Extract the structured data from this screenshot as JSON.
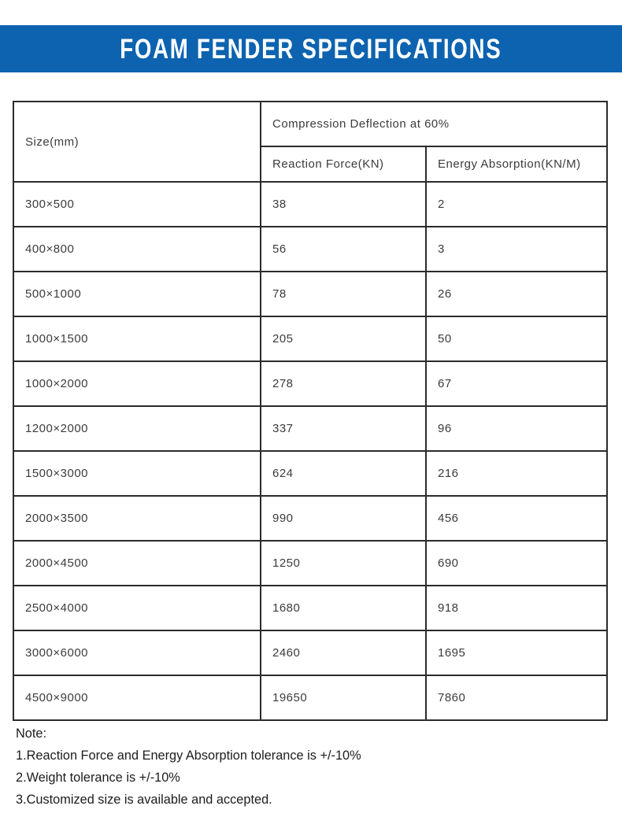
{
  "page": {
    "title": "FOAM FENDER SPECIFICATIONS"
  },
  "colors": {
    "banner_blue": "#0d63b0",
    "table_border": "#2b2b2b",
    "table_text": "#3c3c3c",
    "title_text": "#ffffff"
  },
  "table": {
    "headers": {
      "size": "Size(mm)",
      "group": "Compression Deflection at 60%",
      "reaction": "Reaction Force(KN)",
      "energy": "Energy Absorption(KN/M)"
    },
    "rows": [
      {
        "size": "300×500",
        "reaction": "38",
        "energy": "2"
      },
      {
        "size": "400×800",
        "reaction": "56",
        "energy": "3"
      },
      {
        "size": "500×1000",
        "reaction": "78",
        "energy": "26"
      },
      {
        "size": "1000×1500",
        "reaction": "205",
        "energy": "50"
      },
      {
        "size": "1000×2000",
        "reaction": "278",
        "energy": "67"
      },
      {
        "size": "1200×2000",
        "reaction": "337",
        "energy": "96"
      },
      {
        "size": "1500×3000",
        "reaction": "624",
        "energy": "216"
      },
      {
        "size": "2000×3500",
        "reaction": "990",
        "energy": "456"
      },
      {
        "size": "2000×4500",
        "reaction": "1250",
        "energy": "690"
      },
      {
        "size": "2500×4000",
        "reaction": "1680",
        "energy": "918"
      },
      {
        "size": "3000×6000",
        "reaction": "2460",
        "energy": "1695"
      },
      {
        "size": "4500×9000",
        "reaction": "19650",
        "energy": "7860"
      }
    ]
  },
  "notes": {
    "label": "Note:",
    "items": [
      "1.Reaction Force and Energy Absorption tolerance is +/-10%",
      "2.Weight tolerance is +/-10%",
      "3.Customized size is available and accepted."
    ]
  }
}
